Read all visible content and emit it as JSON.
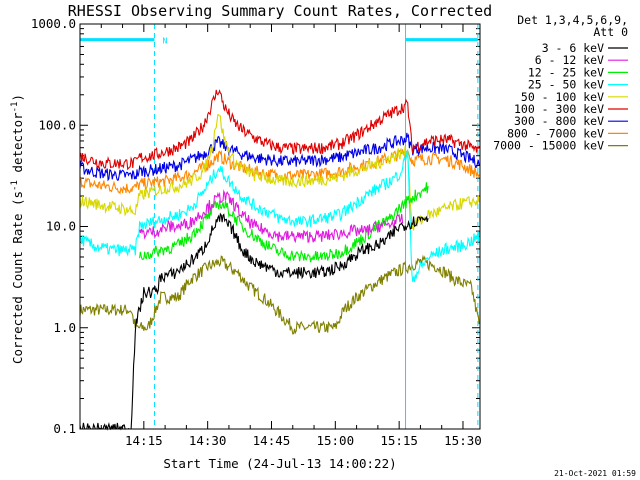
{
  "chart_data": {
    "type": "line",
    "title": "RHESSI Observing Summary Count Rates, Corrected",
    "xlabel": "Start Time (24-Jul-13 14:00:22)",
    "ylabel_prefix": "Corrected Count Rate (s",
    "ylabel_sup": "-1",
    "ylabel_mid": " detector",
    "ylabel_sup2": "-1",
    "ylabel_suffix": ")",
    "timestamp": "21-Oct-2021 01:59",
    "yscale": "log",
    "ylim": [
      0.1,
      1000
    ],
    "xlim_minutes": [
      0,
      94
    ],
    "y_ticks": [
      {
        "value": 0.1,
        "label": "0.1"
      },
      {
        "value": 1,
        "label": "1.0"
      },
      {
        "value": 10,
        "label": "10.0"
      },
      {
        "value": 100,
        "label": "100.0"
      },
      {
        "value": 1000,
        "label": "1000.0"
      }
    ],
    "x_ticks": [
      {
        "minute": 15,
        "label": "14:15"
      },
      {
        "minute": 30,
        "label": "14:30"
      },
      {
        "minute": 45,
        "label": "14:45"
      },
      {
        "minute": 60,
        "label": "15:00"
      },
      {
        "minute": 75,
        "label": "15:15"
      },
      {
        "minute": 90,
        "label": "15:30"
      }
    ],
    "legend_header": [
      "Det 1,3,4,5,6,9,",
      "Att 0"
    ],
    "night_flag_label": "N",
    "markers": [
      {
        "minute": 0,
        "style": "solid"
      },
      {
        "minute": 17.5,
        "style": "dashed"
      },
      {
        "minute": 76.5,
        "style": "solid"
      },
      {
        "minute": 93.5,
        "style": "dashed"
      }
    ],
    "flag_bars": [
      {
        "from": 0,
        "to": 17.5,
        "value": 700
      },
      {
        "from": 76.5,
        "to": 93.5,
        "value": 700
      }
    ],
    "series": [
      {
        "name": "3 - 6 keV",
        "color": "#000000",
        "points": [
          [
            0,
            0.1
          ],
          [
            12,
            0.1
          ],
          [
            13,
            1.0
          ],
          [
            14,
            1.5
          ],
          [
            15,
            2.2
          ],
          [
            18,
            2.3
          ],
          [
            19,
            3.2
          ],
          [
            22,
            3.4
          ],
          [
            26,
            4.5
          ],
          [
            29,
            6
          ],
          [
            31,
            9
          ],
          [
            32,
            11
          ],
          [
            33.5,
            12
          ],
          [
            36,
            9
          ],
          [
            38,
            6
          ],
          [
            41,
            4.5
          ],
          [
            44,
            4
          ],
          [
            47,
            3.5
          ],
          [
            52,
            3.5
          ],
          [
            57,
            3.5
          ],
          [
            61,
            4
          ],
          [
            64,
            5
          ],
          [
            67,
            6
          ],
          [
            70,
            6.5
          ],
          [
            73,
            8
          ],
          [
            75,
            10
          ],
          [
            78,
            11
          ],
          [
            80,
            12
          ],
          [
            82,
            12.5
          ]
        ]
      },
      {
        "name": "6 - 12 keV",
        "color": "#e01be0",
        "points": [
          [
            14,
            8.5
          ],
          [
            18,
            9
          ],
          [
            21,
            10
          ],
          [
            23,
            10
          ],
          [
            26,
            11
          ],
          [
            29,
            14
          ],
          [
            31,
            17
          ],
          [
            32.5,
            19
          ],
          [
            34,
            20
          ],
          [
            36,
            17
          ],
          [
            38,
            13
          ],
          [
            41,
            10
          ],
          [
            44,
            9
          ],
          [
            47,
            8
          ],
          [
            52,
            8
          ],
          [
            57,
            8
          ],
          [
            61,
            8.5
          ],
          [
            64,
            9
          ],
          [
            67,
            9
          ],
          [
            70,
            10
          ],
          [
            73,
            10.5
          ],
          [
            76,
            12
          ]
        ]
      },
      {
        "name": "12 - 25 keV",
        "color": "#00ee00",
        "points": [
          [
            14,
            5
          ],
          [
            17,
            5.5
          ],
          [
            20,
            6
          ],
          [
            23,
            6.5
          ],
          [
            26,
            8
          ],
          [
            29,
            11
          ],
          [
            31,
            14
          ],
          [
            32.5,
            17
          ],
          [
            34,
            16
          ],
          [
            36,
            13
          ],
          [
            38,
            10
          ],
          [
            41,
            8
          ],
          [
            44,
            6.5
          ],
          [
            47,
            5.5
          ],
          [
            52,
            5
          ],
          [
            57,
            5
          ],
          [
            61,
            5.5
          ],
          [
            64,
            6.5
          ],
          [
            67,
            8
          ],
          [
            70,
            10
          ],
          [
            73,
            12
          ],
          [
            75,
            15
          ],
          [
            77,
            18
          ],
          [
            80,
            22
          ],
          [
            82,
            25
          ]
        ]
      },
      {
        "name": "25 - 50 keV",
        "color": "#00ffff",
        "points": [
          [
            0,
            7.5
          ],
          [
            3,
            6.5
          ],
          [
            6,
            6
          ],
          [
            10,
            5.8
          ],
          [
            13,
            5.8
          ],
          [
            14,
            10
          ],
          [
            17,
            11
          ],
          [
            20,
            12
          ],
          [
            23,
            13
          ],
          [
            26,
            15
          ],
          [
            29,
            22
          ],
          [
            31,
            30
          ],
          [
            32.5,
            38
          ],
          [
            34,
            32
          ],
          [
            36,
            25
          ],
          [
            38,
            20
          ],
          [
            41,
            16
          ],
          [
            44,
            14
          ],
          [
            47,
            12
          ],
          [
            52,
            11
          ],
          [
            57,
            12
          ],
          [
            61,
            13
          ],
          [
            64,
            16
          ],
          [
            67,
            20
          ],
          [
            70,
            24
          ],
          [
            73,
            28
          ],
          [
            75,
            33
          ],
          [
            76,
            40
          ],
          [
            77,
            60
          ],
          [
            78,
            3
          ],
          [
            82,
            5
          ],
          [
            86,
            6
          ],
          [
            90,
            6.5
          ],
          [
            94,
            8
          ]
        ]
      },
      {
        "name": "50 - 100 keV",
        "color": "#d8d800",
        "points": [
          [
            0,
            18
          ],
          [
            3,
            17
          ],
          [
            6,
            16
          ],
          [
            10,
            15
          ],
          [
            13,
            14
          ],
          [
            14,
            20
          ],
          [
            17,
            22
          ],
          [
            20,
            24
          ],
          [
            23,
            25
          ],
          [
            26,
            28
          ],
          [
            29,
            35
          ],
          [
            31,
            60
          ],
          [
            32.5,
            140
          ],
          [
            34,
            70
          ],
          [
            36,
            45
          ],
          [
            38,
            38
          ],
          [
            41,
            32
          ],
          [
            44,
            30
          ],
          [
            47,
            28
          ],
          [
            52,
            28
          ],
          [
            57,
            29
          ],
          [
            61,
            31
          ],
          [
            64,
            35
          ],
          [
            67,
            38
          ],
          [
            70,
            42
          ],
          [
            73,
            48
          ],
          [
            75,
            52
          ],
          [
            77,
            55
          ],
          [
            78,
            10
          ],
          [
            82,
            13
          ],
          [
            86,
            15
          ],
          [
            90,
            17
          ],
          [
            94,
            18
          ]
        ]
      },
      {
        "name": "100 - 300 keV",
        "color": "#e00000",
        "points": [
          [
            0,
            50
          ],
          [
            3,
            45
          ],
          [
            6,
            42
          ],
          [
            10,
            42
          ],
          [
            13,
            42
          ],
          [
            14,
            48
          ],
          [
            17,
            50
          ],
          [
            20,
            55
          ],
          [
            23,
            60
          ],
          [
            26,
            70
          ],
          [
            29,
            100
          ],
          [
            31,
            160
          ],
          [
            32.5,
            230
          ],
          [
            34,
            150
          ],
          [
            36,
            110
          ],
          [
            38,
            90
          ],
          [
            41,
            75
          ],
          [
            44,
            65
          ],
          [
            47,
            60
          ],
          [
            52,
            58
          ],
          [
            57,
            60
          ],
          [
            61,
            65
          ],
          [
            64,
            75
          ],
          [
            67,
            90
          ],
          [
            70,
            110
          ],
          [
            73,
            130
          ],
          [
            75,
            145
          ],
          [
            77,
            160
          ],
          [
            78,
            60
          ],
          [
            82,
            70
          ],
          [
            86,
            72
          ],
          [
            90,
            65
          ],
          [
            94,
            55
          ]
        ]
      },
      {
        "name": "300 - 800 keV",
        "color": "#0000e8",
        "points": [
          [
            0,
            38
          ],
          [
            3,
            35
          ],
          [
            6,
            33
          ],
          [
            10,
            32
          ],
          [
            13,
            32
          ],
          [
            14,
            35
          ],
          [
            17,
            36
          ],
          [
            20,
            38
          ],
          [
            23,
            40
          ],
          [
            26,
            45
          ],
          [
            29,
            52
          ],
          [
            31,
            60
          ],
          [
            32.5,
            68
          ],
          [
            34,
            62
          ],
          [
            36,
            56
          ],
          [
            38,
            52
          ],
          [
            41,
            48
          ],
          [
            44,
            46
          ],
          [
            47,
            44
          ],
          [
            52,
            44
          ],
          [
            57,
            46
          ],
          [
            61,
            48
          ],
          [
            64,
            52
          ],
          [
            67,
            56
          ],
          [
            70,
            60
          ],
          [
            73,
            66
          ],
          [
            75,
            70
          ],
          [
            77,
            75
          ],
          [
            78,
            58
          ],
          [
            82,
            60
          ],
          [
            86,
            58
          ],
          [
            90,
            50
          ],
          [
            94,
            42
          ]
        ]
      },
      {
        "name": "800 - 7000 keV",
        "color": "#ff8800",
        "points": [
          [
            0,
            28
          ],
          [
            3,
            26
          ],
          [
            6,
            25
          ],
          [
            10,
            24
          ],
          [
            13,
            24
          ],
          [
            14,
            26
          ],
          [
            17,
            27
          ],
          [
            20,
            28
          ],
          [
            23,
            30
          ],
          [
            26,
            33
          ],
          [
            29,
            38
          ],
          [
            31,
            44
          ],
          [
            32.5,
            50
          ],
          [
            34,
            46
          ],
          [
            36,
            41
          ],
          [
            38,
            38
          ],
          [
            41,
            35
          ],
          [
            44,
            33
          ],
          [
            47,
            32
          ],
          [
            52,
            32
          ],
          [
            57,
            33
          ],
          [
            61,
            35
          ],
          [
            64,
            38
          ],
          [
            67,
            41
          ],
          [
            70,
            44
          ],
          [
            73,
            48
          ],
          [
            75,
            52
          ],
          [
            77,
            56
          ],
          [
            78,
            45
          ],
          [
            82,
            47
          ],
          [
            86,
            46
          ],
          [
            90,
            40
          ],
          [
            94,
            32
          ]
        ]
      },
      {
        "name": "7000 - 15000 keV",
        "color": "#808000",
        "points": [
          [
            0,
            1.5
          ],
          [
            4,
            1.5
          ],
          [
            8,
            1.5
          ],
          [
            12,
            1.5
          ],
          [
            13,
            1
          ],
          [
            16,
            1
          ],
          [
            19,
            2
          ],
          [
            23,
            2
          ],
          [
            26,
            3
          ],
          [
            30,
            4
          ],
          [
            33,
            4.5
          ],
          [
            37,
            3.5
          ],
          [
            40,
            2.5
          ],
          [
            43,
            2
          ],
          [
            46,
            1.5
          ],
          [
            50,
            1
          ],
          [
            55,
            1
          ],
          [
            60,
            1
          ],
          [
            62,
            1.5
          ],
          [
            65,
            2
          ],
          [
            68,
            2.5
          ],
          [
            71,
            3
          ],
          [
            74,
            3.5
          ],
          [
            77,
            4
          ],
          [
            80,
            4.5
          ],
          [
            84,
            4
          ],
          [
            88,
            3
          ],
          [
            92,
            2.5
          ],
          [
            94,
            1
          ]
        ]
      }
    ]
  }
}
